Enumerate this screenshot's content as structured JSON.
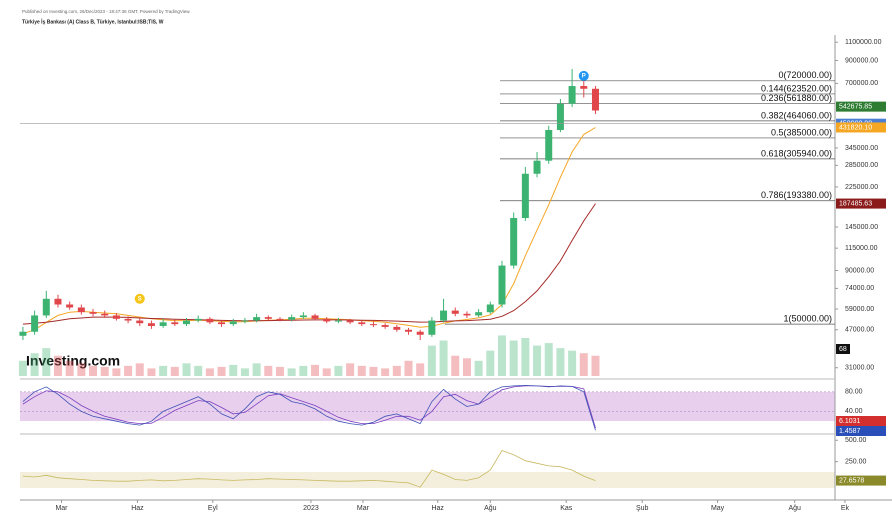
{
  "chart_data": {
    "type": "candlestick",
    "header": [
      "Published on Investing.com, 26/Dec/2023 - 18:47:36 GMT, Powered by TradingView.",
      "Türkiye İş Bankası (A) Class B, Türkiye, Istanbul:ISB;TIS, W"
    ],
    "logo": "Investing.com",
    "markers": [
      {
        "label": "S",
        "x": 20,
        "value": 66000,
        "color": "#f5c518"
      },
      {
        "label": "P",
        "x": 96,
        "value": 760000,
        "color": "#2196f3"
      }
    ],
    "up_color": "#3cb371",
    "down_color": "#e0464a",
    "log_scale": true,
    "x": [
      0,
      2,
      4,
      6,
      8,
      10,
      12,
      14,
      16,
      18,
      20,
      22,
      24,
      26,
      28,
      30,
      32,
      34,
      36,
      38,
      40,
      42,
      44,
      46,
      48,
      50,
      52,
      54,
      56,
      58,
      60,
      62,
      64,
      66,
      68,
      70,
      72,
      74,
      76,
      78,
      80,
      82,
      84,
      86,
      88,
      90,
      92,
      94,
      96,
      98
    ],
    "open": [
      44000,
      46000,
      55000,
      66000,
      62000,
      60000,
      57000,
      56000,
      55000,
      53000,
      52000,
      50500,
      49000,
      51000,
      50000,
      52000,
      53000,
      51000,
      50000,
      51500,
      52000,
      54000,
      53000,
      52500,
      54000,
      55000,
      53000,
      51500,
      52000,
      51000,
      50000,
      49500,
      48500,
      47000,
      46000,
      44500,
      52000,
      58000,
      56000,
      55000,
      57000,
      62000,
      95000,
      160000,
      260000,
      300000,
      420000,
      560000,
      680000,
      660000
    ],
    "high": [
      48500,
      58000,
      72000,
      69000,
      64000,
      62000,
      59000,
      58000,
      56500,
      54500,
      53500,
      52000,
      53000,
      52500,
      53500,
      55000,
      54000,
      52000,
      53000,
      53500,
      56000,
      55000,
      54000,
      55500,
      57000,
      56000,
      54000,
      53500,
      53000,
      52000,
      51500,
      50500,
      49500,
      48000,
      47000,
      54000,
      66000,
      60000,
      57500,
      59000,
      64000,
      100000,
      170000,
      280000,
      330000,
      440000,
      590000,
      820000,
      760000,
      680000
    ],
    "low": [
      42000,
      44500,
      53500,
      60000,
      58500,
      55500,
      54500,
      53500,
      52000,
      50500,
      49000,
      47500,
      48000,
      49000,
      49000,
      51000,
      50000,
      48500,
      49000,
      50500,
      51000,
      52000,
      51500,
      51500,
      53000,
      52000,
      50500,
      50500,
      50000,
      49000,
      48500,
      47500,
      46000,
      44500,
      42000,
      43500,
      51000,
      54500,
      53500,
      54000,
      56000,
      60000,
      92000,
      155000,
      250000,
      290000,
      410000,
      540000,
      600000,
      500000
    ],
    "close": [
      46000,
      55000,
      66000,
      62000,
      60000,
      57000,
      56000,
      55000,
      53000,
      52000,
      50500,
      49000,
      51000,
      50000,
      52000,
      53000,
      51000,
      50000,
      51500,
      52000,
      54000,
      53000,
      52500,
      54000,
      55000,
      53000,
      51500,
      52000,
      51000,
      50000,
      49500,
      48500,
      47000,
      46000,
      44500,
      52000,
      58000,
      56000,
      55000,
      57000,
      62000,
      95000,
      160000,
      260000,
      300000,
      420000,
      560000,
      680000,
      660000,
      520000
    ],
    "lines": [
      {
        "color": "#f5a623",
        "values": [
          45000,
          47000,
          51000,
          55000,
          57000,
          57500,
          57000,
          56500,
          56000,
          55000,
          54000,
          53000,
          52500,
          52000,
          52000,
          52200,
          52000,
          51500,
          51300,
          51300,
          51800,
          52200,
          52400,
          52800,
          53300,
          53300,
          53000,
          52700,
          52500,
          52000,
          51500,
          51000,
          50200,
          49300,
          48300,
          48800,
          50500,
          51800,
          52600,
          53600,
          55300,
          62000,
          78000,
          106000,
          140000,
          185000,
          250000,
          330000,
          400000,
          431820.1
        ]
      },
      {
        "color": "#a52a2a",
        "values": [
          50000,
          50500,
          51000,
          52000,
          53000,
          53500,
          54000,
          54000,
          54000,
          53800,
          53500,
          53200,
          53000,
          52800,
          52600,
          52500,
          52300,
          52100,
          52000,
          51900,
          51900,
          52000,
          52100,
          52200,
          52300,
          52400,
          52400,
          52400,
          52300,
          52200,
          52100,
          51900,
          51700,
          51400,
          51100,
          51200,
          51500,
          51800,
          52000,
          52300,
          52800,
          54500,
          58000,
          64000,
          72000,
          84000,
          100000,
          125000,
          155000,
          187485.63
        ]
      }
    ],
    "volume": [
      30,
      45,
      55,
      40,
      30,
      25,
      20,
      18,
      15,
      20,
      25,
      15,
      20,
      18,
      25,
      20,
      15,
      18,
      22,
      15,
      25,
      20,
      18,
      15,
      20,
      22,
      15,
      20,
      25,
      20,
      18,
      15,
      20,
      30,
      25,
      60,
      70,
      40,
      35,
      30,
      50,
      80,
      70,
      75,
      60,
      65,
      55,
      50,
      45,
      40
    ],
    "volume_lim": [
      0,
      150
    ],
    "volume_tag": "68",
    "xlim": [
      -0.5,
      139
    ],
    "xticks": [
      {
        "value": 6.6,
        "label": "Mar"
      },
      {
        "value": 19.6,
        "label": "Haz"
      },
      {
        "value": 32.5,
        "label": "Eyl"
      },
      {
        "value": 49.3,
        "label": "2023"
      },
      {
        "value": 58.2,
        "label": "Mar"
      },
      {
        "value": 71,
        "label": "Haz"
      },
      {
        "value": 80,
        "label": "Ağu"
      },
      {
        "value": 93,
        "label": "Kas"
      },
      {
        "value": 106,
        "label": "Şub"
      },
      {
        "value": 118.9,
        "label": "May"
      },
      {
        "value": 132.1,
        "label": "Ağu"
      },
      {
        "value": 140.7,
        "label": "Ek"
      }
    ],
    "ylim": [
      27700,
      1190000
    ],
    "yticks": [
      {
        "value": 1100000,
        "label": "1100000.00"
      },
      {
        "value": 900000,
        "label": "900000.00"
      },
      {
        "value": 700000,
        "label": "700000.00"
      },
      {
        "value": 345000,
        "label": "345000.00"
      },
      {
        "value": 285000,
        "label": "285000.00"
      },
      {
        "value": 225000,
        "label": "225000.00"
      },
      {
        "value": 145000,
        "label": "145000.00"
      },
      {
        "value": 115000,
        "label": "115000.00"
      },
      {
        "value": 90000,
        "label": "90000.00"
      },
      {
        "value": 74000,
        "label": "74000.00"
      },
      {
        "value": 59000,
        "label": "59000.00"
      },
      {
        "value": 47000,
        "label": "47000.00"
      },
      {
        "value": 31000,
        "label": "31000.00"
      }
    ],
    "price_tags": [
      {
        "value": 542675.85,
        "label": "542675.85",
        "color": "#2e7d32"
      },
      {
        "value": 450000,
        "label": "450000.00",
        "color": "#4a7fd4"
      },
      {
        "value": 431820.1,
        "label": "431820.10",
        "color": "#f5a623"
      },
      {
        "value": 187485.63,
        "label": "187485.63",
        "color": "#8b1a1a"
      }
    ],
    "fib": [
      {
        "value": 720000,
        "label": "0(720000.00)"
      },
      {
        "value": 623520,
        "label": "0.144(623520.00)"
      },
      {
        "value": 561880,
        "label": "0.236(561880.00)"
      },
      {
        "value": 464060,
        "label": "0.382(464060.00)"
      },
      {
        "value": 385000,
        "label": "0.5(385000.00)"
      },
      {
        "value": 305940,
        "label": "0.618(305940.00)"
      },
      {
        "value": 193380,
        "label": "0.786(193380.00)"
      },
      {
        "value": 50000,
        "label": "1(50000.00)"
      }
    ],
    "osc": {
      "ylim": [
        0,
        100
      ],
      "yticks": [
        {
          "value": 80,
          "label": "80.00"
        },
        {
          "value": 40,
          "label": "40.00"
        }
      ],
      "series": [
        {
          "color": "#7b3fbf",
          "values": [
            55,
            70,
            82,
            80,
            68,
            52,
            40,
            30,
            24,
            18,
            15,
            16,
            28,
            42,
            52,
            62,
            60,
            48,
            35,
            38,
            55,
            72,
            76,
            68,
            60,
            52,
            40,
            28,
            20,
            15,
            15,
            22,
            30,
            30,
            22,
            40,
            70,
            75,
            62,
            55,
            68,
            84,
            90,
            92,
            92,
            91,
            91,
            91,
            86,
            6.1031
          ],
          "tag": "6.1031",
          "tag_color": "#d32f2f"
        },
        {
          "color": "#3f51b5",
          "values": [
            60,
            80,
            90,
            75,
            55,
            40,
            30,
            25,
            20,
            15,
            12,
            20,
            40,
            50,
            60,
            70,
            55,
            35,
            25,
            45,
            70,
            80,
            75,
            60,
            55,
            45,
            30,
            20,
            15,
            12,
            18,
            30,
            35,
            25,
            15,
            60,
            85,
            65,
            50,
            55,
            80,
            90,
            92,
            93,
            92,
            90,
            92,
            91,
            80,
            1.4587
          ],
          "tag": "1.4587",
          "tag_color": "#2a4fb8"
        }
      ]
    },
    "lower": {
      "ylim": [
        -200,
        550
      ],
      "yticks": [
        {
          "value": 500,
          "label": "500.00"
        },
        {
          "value": 250,
          "label": "250.00"
        }
      ],
      "color": "#c8b860",
      "values": [
        80,
        70,
        90,
        60,
        50,
        40,
        30,
        25,
        20,
        20,
        30,
        35,
        25,
        30,
        40,
        50,
        45,
        35,
        30,
        35,
        40,
        50,
        45,
        40,
        35,
        30,
        25,
        20,
        20,
        25,
        30,
        20,
        10,
        0,
        -50,
        150,
        100,
        40,
        30,
        60,
        150,
        380,
        330,
        260,
        230,
        200,
        190,
        150,
        80,
        27.6578
      ],
      "tag": "27.6578",
      "tag_color": "#8a8a2a"
    }
  }
}
